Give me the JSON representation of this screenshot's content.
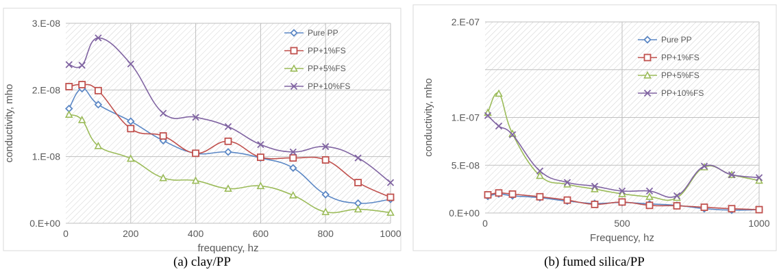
{
  "chart_data": [
    {
      "type": "line",
      "x": [
        10,
        50,
        100,
        200,
        300,
        400,
        500,
        600,
        700,
        800,
        900,
        1000
      ],
      "series": [
        {
          "name": "Pure PP",
          "color": "#5b87c5",
          "marker": "diamond",
          "values": [
            1.72e-08,
            2.02e-08,
            1.78e-08,
            1.53e-08,
            1.24e-08,
            1.05e-08,
            1.07e-08,
            9.8e-09,
            8.3e-09,
            4.3e-09,
            3e-09,
            3.6e-09
          ]
        },
        {
          "name": "PP+1%FS",
          "color": "#c0504d",
          "marker": "square",
          "values": [
            2.05e-08,
            2.08e-08,
            1.99e-08,
            1.42e-08,
            1.31e-08,
            1.05e-08,
            1.23e-08,
            9.9e-09,
            9.8e-09,
            9.5e-09,
            6.1e-09,
            3.9e-09
          ]
        },
        {
          "name": "PP+5%FS",
          "color": "#9bbb59",
          "marker": "triangle",
          "values": [
            1.63e-08,
            1.55e-08,
            1.16e-08,
            9.7e-09,
            6.8e-09,
            6.4e-09,
            5.2e-09,
            5.6e-09,
            4.2e-09,
            1.7e-09,
            2.1e-09,
            1.6e-09
          ]
        },
        {
          "name": "PP+10%FS",
          "color": "#8064a2",
          "marker": "x",
          "values": [
            2.38e-08,
            2.37e-08,
            2.78e-08,
            2.39e-08,
            1.65e-08,
            1.59e-08,
            1.45e-08,
            1.18e-08,
            1.07e-08,
            1.15e-08,
            9.8e-09,
            6.1e-09
          ]
        }
      ],
      "xlabel": "frequency, hz",
      "ylabel": "conductivity, mho",
      "xlim": [
        0,
        1000
      ],
      "ylim": [
        0,
        3e-08
      ],
      "xticks": [
        0,
        200,
        400,
        600,
        800,
        1000
      ],
      "xtick_labels": [
        "0",
        "200",
        "400",
        "600",
        "800",
        "1000"
      ],
      "yticks": [
        0,
        1e-08,
        2e-08,
        3e-08
      ],
      "ytick_labels": [
        "0.E+00",
        "1.E-08",
        "2.E-08",
        "3.E-08"
      ],
      "grid": true,
      "legend": "top-right",
      "caption": "(a) clay/PP"
    },
    {
      "type": "line",
      "x": [
        10,
        50,
        100,
        200,
        300,
        400,
        500,
        600,
        700,
        800,
        900,
        1000
      ],
      "series": [
        {
          "name": "Pure PP",
          "color": "#5b87c5",
          "marker": "diamond",
          "values": [
            1.75e-08,
            2e-08,
            1.8e-08,
            1.6e-08,
            1.25e-08,
            1e-08,
            1.1e-08,
            9.5e-09,
            8e-09,
            4.5e-09,
            3e-09,
            3.5e-09
          ]
        },
        {
          "name": "PP+1%FS",
          "color": "#c0504d",
          "marker": "square",
          "values": [
            1.9e-08,
            2.1e-08,
            1.98e-08,
            1.7e-08,
            1.35e-08,
            9e-09,
            1.15e-08,
            8e-09,
            7.5e-09,
            6e-09,
            4.5e-09,
            3.5e-09
          ]
        },
        {
          "name": "PP+5%FS",
          "color": "#9bbb59",
          "marker": "triangle",
          "values": [
            1.05e-07,
            1.25e-07,
            8.3e-08,
            3.9e-08,
            3e-08,
            2.5e-08,
            2e-08,
            1.7e-08,
            1.6e-08,
            4.8e-08,
            4e-08,
            3.4e-08
          ]
        },
        {
          "name": "PP+10%FS",
          "color": "#8064a2",
          "marker": "x",
          "values": [
            1.02e-07,
            9.1e-08,
            8.2e-08,
            4.4e-08,
            3.2e-08,
            2.8e-08,
            2.3e-08,
            2.3e-08,
            1.8e-08,
            4.9e-08,
            4e-08,
            3.7e-08
          ]
        }
      ],
      "xlabel": "Frequency, hz",
      "ylabel": "conductivity, mho",
      "xlim": [
        0,
        1000
      ],
      "ylim": [
        0,
        2e-07
      ],
      "xticks": [
        0,
        500,
        1000
      ],
      "xtick_labels": [
        "0",
        "500",
        "1000"
      ],
      "yticks": [
        0,
        5e-08,
        1e-07,
        1.5e-07,
        2e-07
      ],
      "ytick_labels": [
        "0.E+00",
        "5.E-08",
        "1.E-07",
        "",
        "2.E-07"
      ],
      "grid": true,
      "legend": "top-right",
      "caption": "(b) fumed silica/PP"
    }
  ]
}
